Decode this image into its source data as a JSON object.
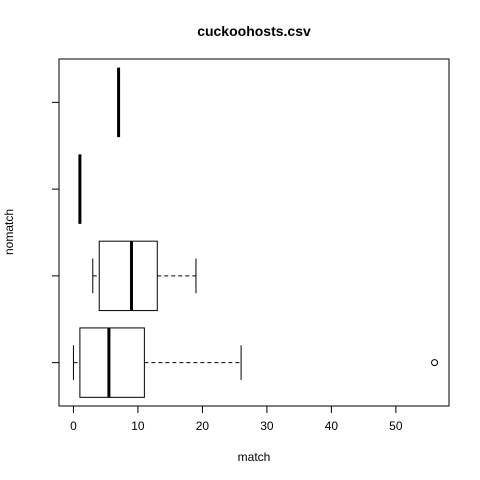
{
  "chart_data": {
    "type": "boxplot",
    "title": "cuckoohosts.csv",
    "xlabel": "match",
    "ylabel": "nomatch",
    "xlim": [
      -2.24,
      58.24
    ],
    "xticks": [
      0,
      10,
      20,
      30,
      40,
      50
    ],
    "horizontal": true,
    "boxes": [
      {
        "position": 1,
        "whisker_low": 0,
        "q1": 1,
        "median": 5.5,
        "q3": 11,
        "whisker_high": 26,
        "outliers": [
          56
        ]
      },
      {
        "position": 2,
        "whisker_low": 3,
        "q1": 4,
        "median": 9,
        "q3": 13,
        "whisker_high": 19,
        "outliers": []
      },
      {
        "position": 3,
        "whisker_low": 1,
        "q1": 1,
        "median": 1,
        "q3": 1,
        "whisker_high": 1,
        "outliers": []
      },
      {
        "position": 4,
        "whisker_low": 7,
        "q1": 7,
        "median": 7,
        "q3": 7,
        "whisker_high": 7,
        "outliers": []
      }
    ],
    "colors": {
      "box": "#000000",
      "background": "#ffffff"
    }
  }
}
